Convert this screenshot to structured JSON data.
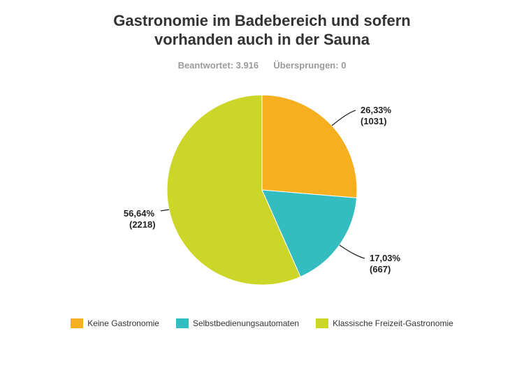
{
  "chart_data": {
    "type": "pie",
    "title_lines": [
      "Gastronomie im Badebereich und sofern",
      "vorhanden auch in der Sauna"
    ],
    "subtitle": {
      "answered": "Beantwortet: 3.916",
      "skipped": "Übersprungen: 0"
    },
    "slices": [
      {
        "name": "Keine Gastronomie",
        "percent_label": "26,33%",
        "count_label": "(1031)",
        "value": 1031,
        "color": "#F5AF1F"
      },
      {
        "name": "Selbstbedienungsautomaten",
        "percent_label": "17,03%",
        "count_label": "(667)",
        "value": 667,
        "color": "#33BDC0"
      },
      {
        "name": "Klassische Freizeit-Gastronomie",
        "percent_label": "56,64%",
        "count_label": "(2218)",
        "value": 2218,
        "color": "#CCD629"
      }
    ],
    "start_angle_deg": 0,
    "direction": "clockwise",
    "legend_position": "bottom"
  }
}
